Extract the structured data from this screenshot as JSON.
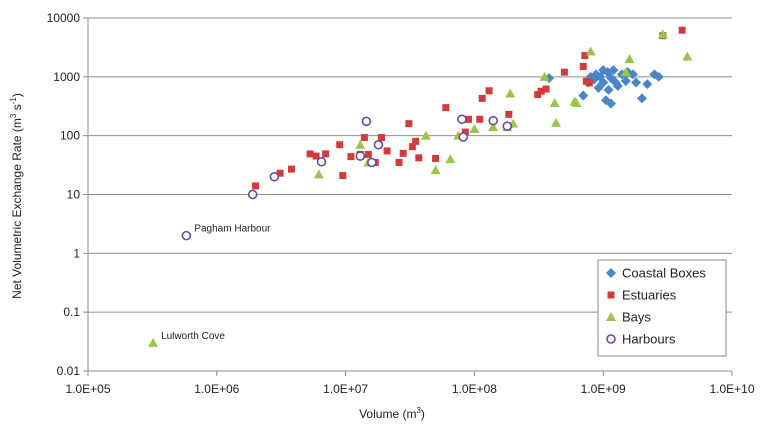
{
  "chart_data": {
    "type": "scatter",
    "title": "",
    "xlabel_pre": "Volume (m",
    "xlabel_sup": "3",
    "xlabel_post": ")",
    "ylabel_pre": "Net Volumetric Exchange Rate (m",
    "ylabel_sup1": "3",
    "ylabel_mid": " s",
    "ylabel_sup2": "-1",
    "ylabel_post": ")",
    "x_scale": "log",
    "y_scale": "log",
    "xlim": [
      100000,
      10000000000
    ],
    "ylim": [
      0.01,
      10000
    ],
    "x_ticks": [
      100000,
      1000000,
      10000000,
      100000000,
      1000000000,
      10000000000
    ],
    "x_tick_labels": [
      "1.0E+05",
      "1.0E+06",
      "1.0E+07",
      "1.0E+08",
      "1.0E+09",
      "1.0E+10"
    ],
    "y_ticks": [
      0.01,
      0.1,
      1,
      10,
      100,
      1000,
      10000
    ],
    "y_tick_labels": [
      "0.01",
      "0.1",
      "1",
      "10",
      "100",
      "1000",
      "10000"
    ],
    "grid": "horizontal",
    "legend_position": "bottom-right",
    "series": [
      {
        "name": "Coastal Boxes",
        "marker": "diamond",
        "color": "#4a86c8",
        "points": [
          [
            380000000,
            950
          ],
          [
            700000000,
            480
          ],
          [
            760000000,
            800
          ],
          [
            800000000,
            1000
          ],
          [
            850000000,
            900
          ],
          [
            880000000,
            1100
          ],
          [
            920000000,
            650
          ],
          [
            950000000,
            1000
          ],
          [
            1000000000,
            1300
          ],
          [
            1000000000,
            800
          ],
          [
            1050000000,
            400
          ],
          [
            1080000000,
            1200
          ],
          [
            1100000000,
            600
          ],
          [
            1150000000,
            950
          ],
          [
            1150000000,
            350
          ],
          [
            1200000000,
            1300
          ],
          [
            1250000000,
            800
          ],
          [
            1300000000,
            700
          ],
          [
            1400000000,
            1100
          ],
          [
            1500000000,
            850
          ],
          [
            1550000000,
            1200
          ],
          [
            1700000000,
            1100
          ],
          [
            1800000000,
            800
          ],
          [
            2000000000,
            430
          ],
          [
            2200000000,
            750
          ],
          [
            2500000000,
            1100
          ],
          [
            2700000000,
            1000
          ]
        ]
      },
      {
        "name": "Estuaries",
        "marker": "square",
        "color": "#d23b3b",
        "points": [
          [
            2000000,
            14
          ],
          [
            3100000,
            23
          ],
          [
            3800000,
            27
          ],
          [
            5300000,
            49
          ],
          [
            5900000,
            45
          ],
          [
            7000000,
            49
          ],
          [
            9000000,
            70
          ],
          [
            9500000,
            21
          ],
          [
            11000000,
            44
          ],
          [
            13000000,
            48
          ],
          [
            14000000,
            93
          ],
          [
            15000000,
            48
          ],
          [
            17000000,
            35
          ],
          [
            19000000,
            93
          ],
          [
            21000000,
            55
          ],
          [
            26000000,
            35
          ],
          [
            28000000,
            50
          ],
          [
            31000000,
            160
          ],
          [
            33000000,
            65
          ],
          [
            35000000,
            80
          ],
          [
            37000000,
            42
          ],
          [
            50000000,
            41
          ],
          [
            60000000,
            300
          ],
          [
            85000000,
            115
          ],
          [
            90000000,
            190
          ],
          [
            110000000,
            190
          ],
          [
            115000000,
            430
          ],
          [
            130000000,
            580
          ],
          [
            185000000,
            230
          ],
          [
            310000000,
            500
          ],
          [
            330000000,
            570
          ],
          [
            360000000,
            620
          ],
          [
            500000000,
            1200
          ],
          [
            700000000,
            1500
          ],
          [
            720000000,
            2300
          ],
          [
            740000000,
            840
          ],
          [
            780000000,
            790
          ],
          [
            2900000000,
            5000
          ],
          [
            4100000000,
            6200
          ]
        ]
      },
      {
        "name": "Bays",
        "marker": "triangle",
        "color": "#9bc54a",
        "points": [
          [
            320000,
            0.03
          ],
          [
            6200000,
            22
          ],
          [
            13000000,
            70
          ],
          [
            15000000,
            35
          ],
          [
            42000000,
            100
          ],
          [
            50000000,
            26
          ],
          [
            65000000,
            40
          ],
          [
            75000000,
            100
          ],
          [
            100000000,
            130
          ],
          [
            140000000,
            140
          ],
          [
            180000000,
            140
          ],
          [
            190000000,
            520
          ],
          [
            200000000,
            160
          ],
          [
            350000000,
            1000
          ],
          [
            420000000,
            360
          ],
          [
            430000000,
            165
          ],
          [
            600000000,
            380
          ],
          [
            620000000,
            360
          ],
          [
            800000000,
            2700
          ],
          [
            1500000000,
            1200
          ],
          [
            1600000000,
            2000
          ],
          [
            2900000000,
            5300
          ],
          [
            4500000000,
            2200
          ]
        ]
      },
      {
        "name": "Harbours",
        "marker": "circle",
        "color": "#6a4a9e",
        "points": [
          [
            580000,
            2
          ],
          [
            1900000,
            10
          ],
          [
            2800000,
            20
          ],
          [
            6500000,
            36
          ],
          [
            13000000,
            45
          ],
          [
            14500000,
            175
          ],
          [
            16000000,
            35
          ],
          [
            18000000,
            70
          ],
          [
            80000000,
            190
          ],
          [
            82000000,
            95
          ],
          [
            140000000,
            180
          ],
          [
            180000000,
            145
          ]
        ]
      }
    ],
    "annotations": [
      {
        "text": "Pagham Harbour",
        "x": 580000,
        "y": 2
      },
      {
        "text": "Lulworth Cove",
        "x": 320000,
        "y": 0.03
      }
    ]
  }
}
